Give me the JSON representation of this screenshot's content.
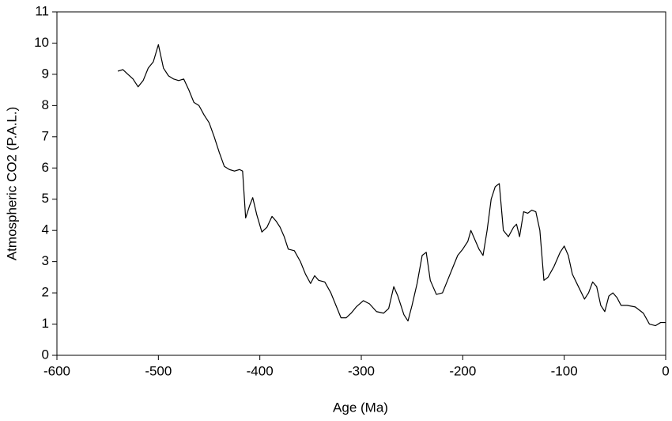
{
  "chart_data": {
    "type": "line",
    "x_label": "Age (Ma)",
    "y_label": "Atmospheric CO2 (P.A.L.)",
    "x": [
      -540,
      -535,
      -530,
      -525,
      -520,
      -515,
      -510,
      -505,
      -500,
      -495,
      -490,
      -485,
      -480,
      -475,
      -470,
      -465,
      -460,
      -455,
      -450,
      -445,
      -440,
      -435,
      -430,
      -425,
      -420,
      -417,
      -414,
      -410,
      -407,
      -403,
      -398,
      -393,
      -388,
      -384,
      -380,
      -376,
      -372,
      -366,
      -360,
      -355,
      -350,
      -346,
      -342,
      -336,
      -330,
      -325,
      -320,
      -315,
      -310,
      -305,
      -298,
      -292,
      -285,
      -278,
      -273,
      -268,
      -264,
      -258,
      -254,
      -250,
      -245,
      -240,
      -236,
      -232,
      -226,
      -220,
      -215,
      -210,
      -205,
      -200,
      -195,
      -192,
      -188,
      -184,
      -180,
      -176,
      -172,
      -168,
      -164,
      -160,
      -155,
      -150,
      -147,
      -144,
      -140,
      -136,
      -132,
      -128,
      -124,
      -120,
      -116,
      -110,
      -104,
      -100,
      -96,
      -92,
      -86,
      -80,
      -76,
      -72,
      -68,
      -64,
      -60,
      -56,
      -52,
      -48,
      -44,
      -38,
      -30,
      -22,
      -16,
      -10,
      -5,
      0
    ],
    "series": [
      {
        "name": "CO2",
        "color": "#000000",
        "values": [
          9.1,
          9.15,
          9.0,
          8.85,
          8.6,
          8.8,
          9.2,
          9.4,
          9.95,
          9.2,
          8.95,
          8.85,
          8.8,
          8.85,
          8.5,
          8.1,
          8.0,
          7.7,
          7.45,
          7.0,
          6.5,
          6.05,
          5.95,
          5.9,
          5.95,
          5.9,
          4.4,
          4.8,
          5.05,
          4.5,
          3.95,
          4.1,
          4.45,
          4.3,
          4.1,
          3.8,
          3.4,
          3.35,
          3.0,
          2.6,
          2.3,
          2.55,
          2.4,
          2.35,
          2.0,
          1.6,
          1.2,
          1.2,
          1.35,
          1.55,
          1.75,
          1.65,
          1.4,
          1.35,
          1.5,
          2.2,
          1.9,
          1.3,
          1.1,
          1.6,
          2.3,
          3.2,
          3.3,
          2.4,
          1.95,
          2.0,
          2.4,
          2.8,
          3.2,
          3.4,
          3.65,
          4.0,
          3.7,
          3.4,
          3.2,
          4.0,
          5.0,
          5.4,
          5.5,
          4.0,
          3.8,
          4.1,
          4.2,
          3.8,
          4.6,
          4.55,
          4.65,
          4.6,
          4.0,
          2.4,
          2.5,
          2.85,
          3.3,
          3.5,
          3.2,
          2.6,
          2.2,
          1.8,
          2.0,
          2.35,
          2.2,
          1.6,
          1.4,
          1.9,
          2.0,
          1.85,
          1.6,
          1.6,
          1.55,
          1.35,
          1.0,
          0.95,
          1.05,
          1.05
        ]
      }
    ],
    "xlim": [
      -600,
      0
    ],
    "xticks": [
      -600,
      -500,
      -400,
      -300,
      -200,
      -100,
      0
    ],
    "ylim": [
      0,
      11
    ],
    "yticks": [
      0,
      1,
      2,
      3,
      4,
      5,
      6,
      7,
      8,
      9,
      10,
      11
    ]
  }
}
